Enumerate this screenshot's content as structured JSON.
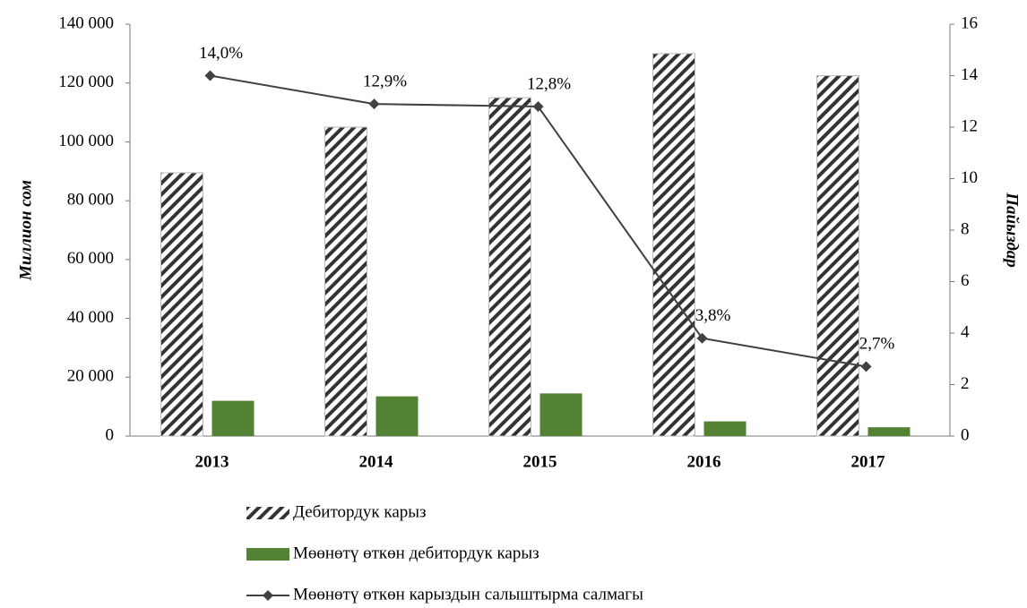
{
  "chart_data": {
    "type": "bar",
    "categories": [
      "2013",
      "2014",
      "2015",
      "2016",
      "2017"
    ],
    "ylabel": "Миллион сом",
    "y2label": "Пайыздар",
    "ylim": [
      0,
      140000
    ],
    "yticks": [
      0,
      {
        "value": 20000,
        "label": "20 000"
      },
      {
        "value": 40000,
        "label": "40 000"
      },
      {
        "value": 60000,
        "label": "60 000"
      },
      {
        "value": 80000,
        "label": "80 000"
      },
      {
        "value": 100000,
        "label": "100 000"
      },
      {
        "value": 120000,
        "label": "120 000"
      },
      {
        "value": 140000,
        "label": "140 000"
      }
    ],
    "y2lim": [
      0,
      16
    ],
    "y2ticks": [
      0,
      2,
      4,
      6,
      8,
      10,
      12,
      14,
      16
    ],
    "grid": false,
    "legend": "bottom",
    "series": [
      {
        "name": "Дебитордук карыз",
        "color": "#333333",
        "pattern": "hatch",
        "values": [
          89500,
          105000,
          115000,
          130000,
          122500
        ]
      },
      {
        "name": "Мөөнөтү өткөн дебитордук карыз",
        "color": "#548235",
        "values": [
          12000,
          13500,
          14500,
          5000,
          3000
        ]
      },
      {
        "name": "Мөөнөтү өткөн карыздын салыштырма салмагы",
        "color": "#404040",
        "type": "line",
        "axis": "y2",
        "values": [
          14.0,
          12.9,
          12.8,
          3.8,
          2.7
        ],
        "value_labels": [
          "14,0%",
          "12,9%",
          "12,8%",
          "3,8%",
          "2,7%"
        ]
      }
    ]
  }
}
